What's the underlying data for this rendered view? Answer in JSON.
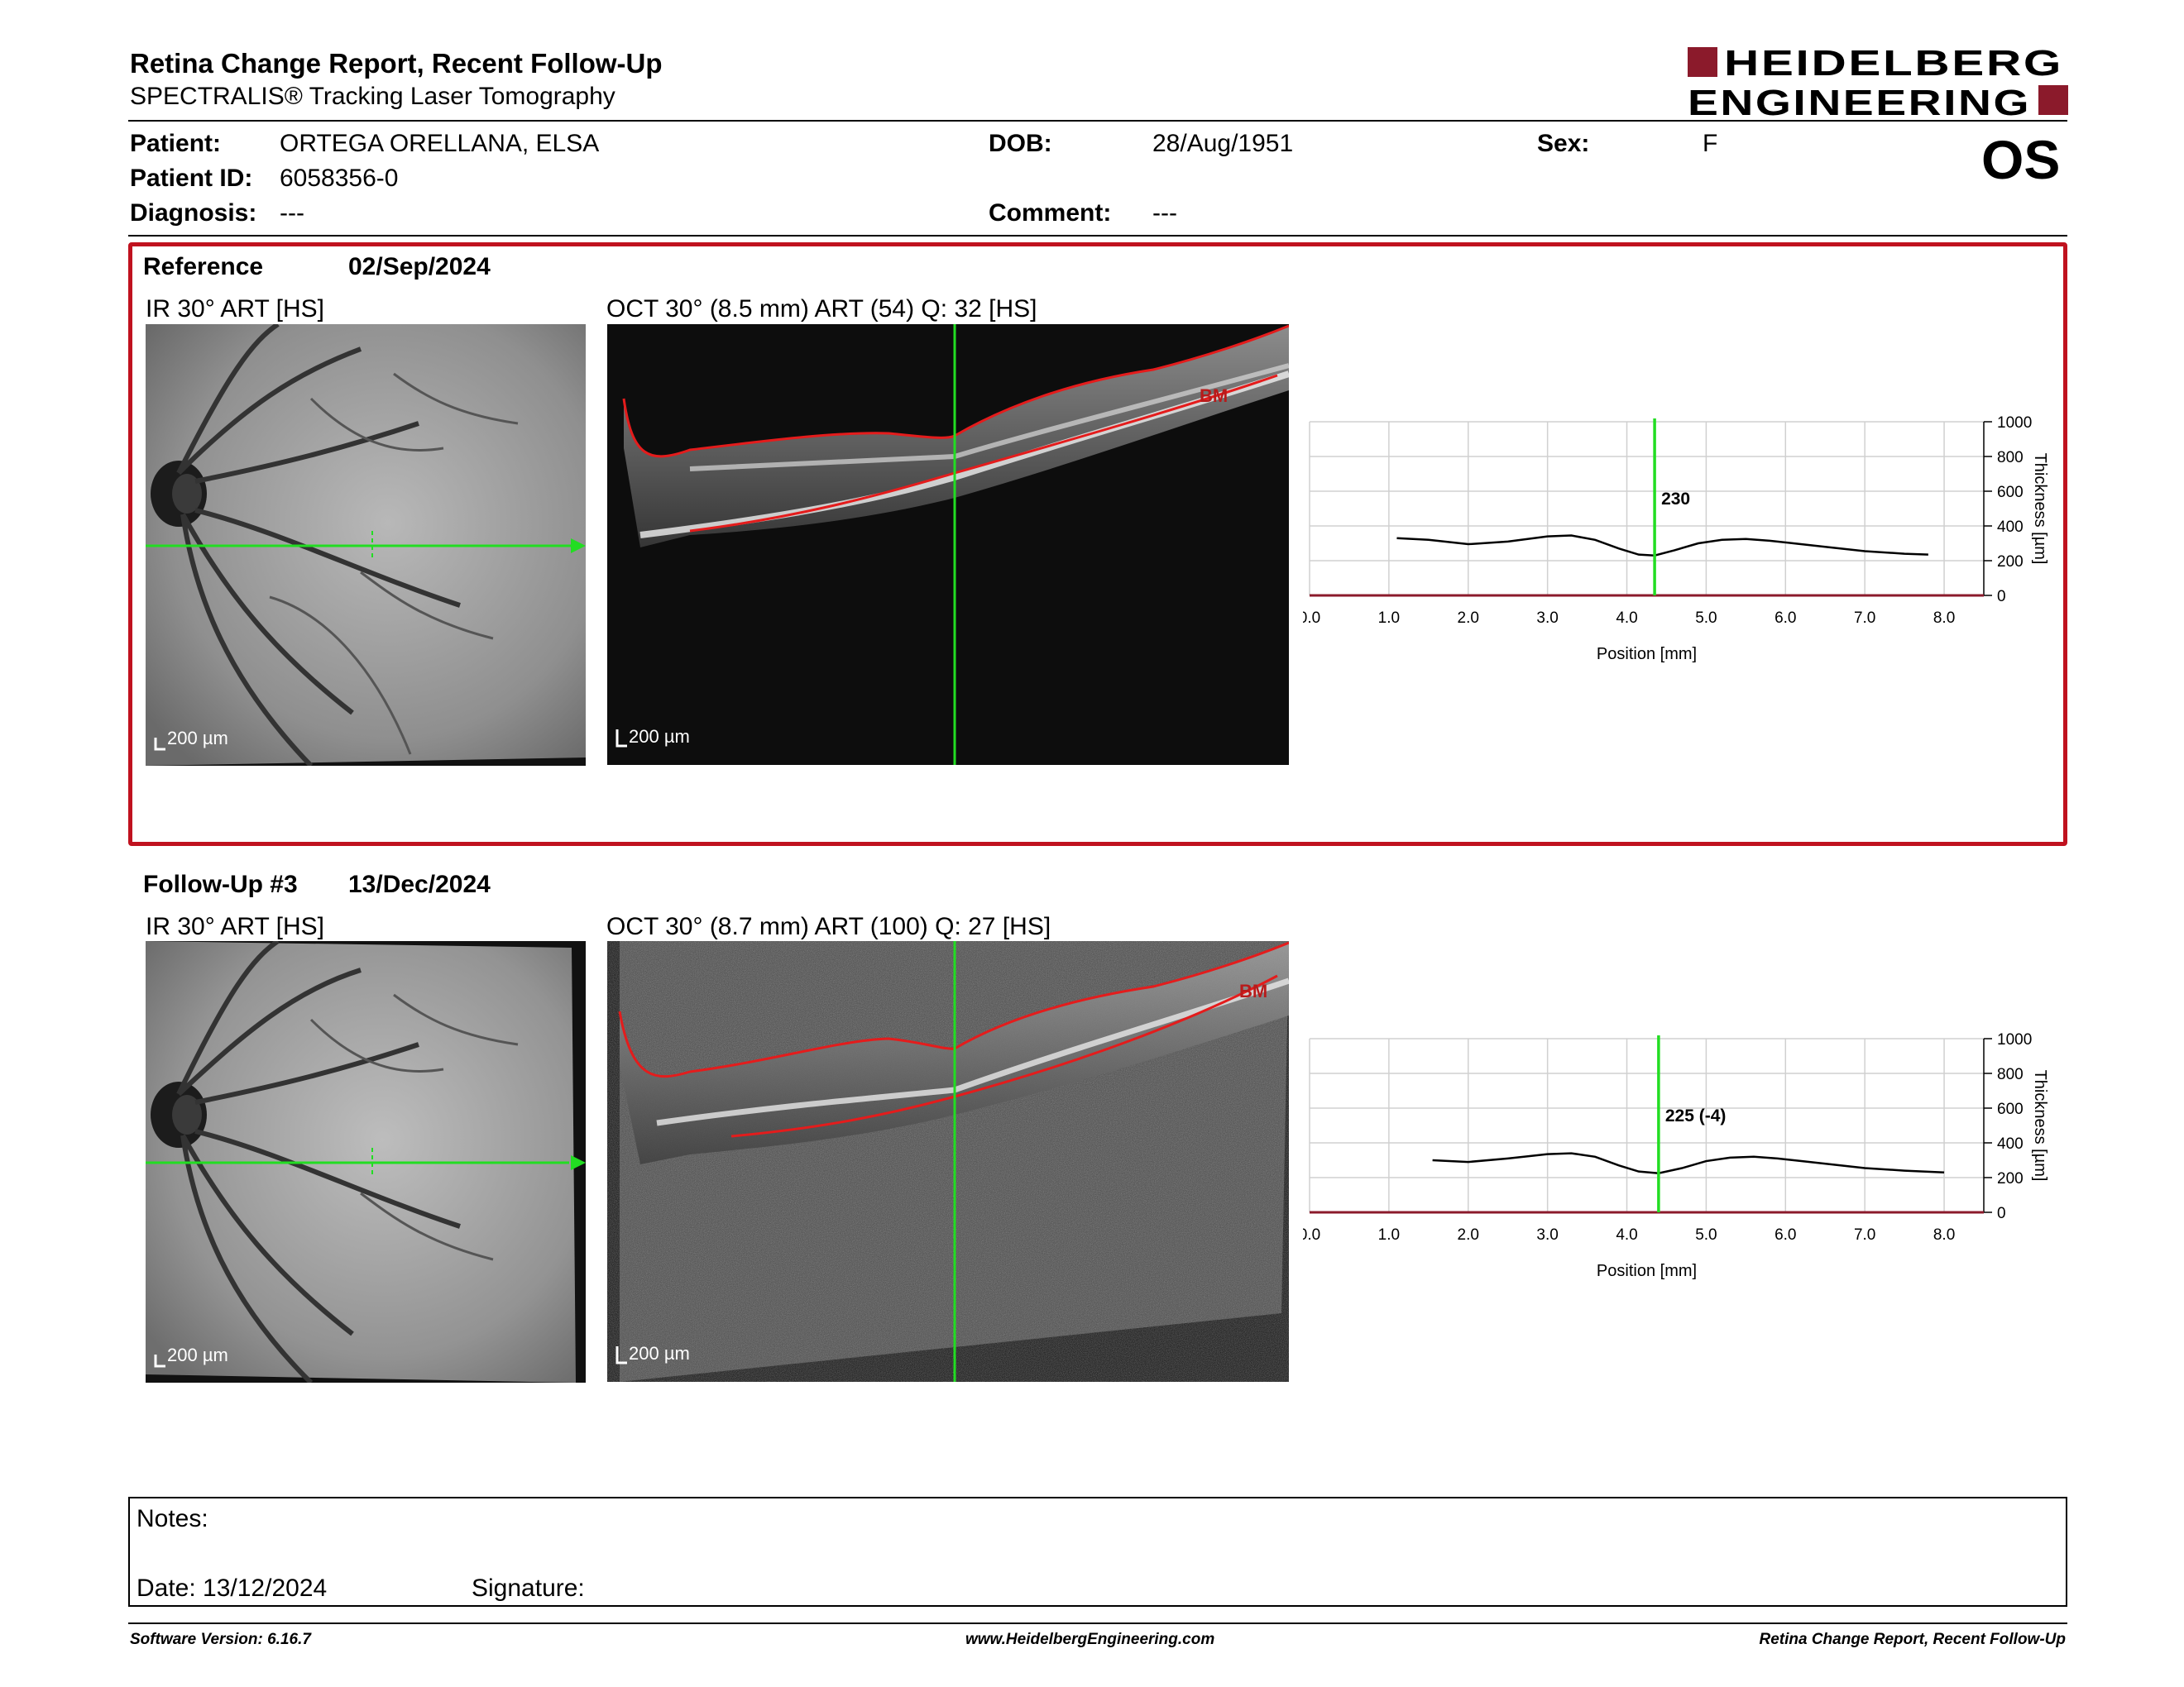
{
  "header": {
    "title": "Retina Change Report, Recent Follow-Up",
    "subtitle": "SPECTRALIS® Tracking Laser Tomography",
    "logo_line1": "HEIDELBERG",
    "logo_line2": "ENGINEERING",
    "eye": "OS"
  },
  "patient": {
    "patient_label": "Patient:",
    "patient_value": "ORTEGA ORELLANA, ELSA",
    "id_label": "Patient ID:",
    "id_value": "6058356-0",
    "diagnosis_label": "Diagnosis:",
    "diagnosis_value": "---",
    "dob_label": "DOB:",
    "dob_value": "28/Aug/1951",
    "comment_label": "Comment:",
    "comment_value": "---",
    "sex_label": "Sex:",
    "sex_value": "F"
  },
  "reference": {
    "label": "Reference",
    "date": "02/Sep/2024",
    "ir_title": "IR 30° ART [HS]",
    "oct_title": "OCT 30° (8.5 mm) ART (54) Q: 32 [HS]",
    "scale_ir": "200 µm",
    "scale_oct": "200 µm",
    "bm_label": "BM"
  },
  "followup": {
    "label": "Follow-Up #3",
    "date": "13/Dec/2024",
    "ir_title": "IR 30° ART [HS]",
    "oct_title": "OCT 30° (8.7 mm) ART (100) Q: 27 [HS]",
    "scale_ir": "200 µm",
    "scale_oct": "200 µm",
    "bm_label": "BM"
  },
  "chart_data": [
    {
      "type": "line",
      "xlabel": "Position [mm]",
      "ylabel": "Thickness [µm]",
      "xlim": [
        0,
        8.5
      ],
      "ylim": [
        0,
        1000
      ],
      "x_ticks": [
        "0.0",
        "1.0",
        "2.0",
        "3.0",
        "4.0",
        "5.0",
        "6.0",
        "7.0",
        "8.0"
      ],
      "y_ticks": [
        "0",
        "200",
        "400",
        "600",
        "800",
        "1000"
      ],
      "grid": true,
      "cursor_x": 4.35,
      "cursor_label": "230",
      "x": [
        1.1,
        1.5,
        2.0,
        2.5,
        3.0,
        3.3,
        3.6,
        3.9,
        4.15,
        4.35,
        4.6,
        4.9,
        5.2,
        5.5,
        5.8,
        6.1,
        6.5,
        7.0,
        7.5,
        7.8
      ],
      "y": [
        330,
        320,
        295,
        310,
        340,
        345,
        320,
        270,
        235,
        230,
        260,
        300,
        320,
        325,
        315,
        300,
        280,
        255,
        240,
        235
      ]
    },
    {
      "type": "line",
      "xlabel": "Position [mm]",
      "ylabel": "Thickness [µm]",
      "xlim": [
        0,
        8.5
      ],
      "ylim": [
        0,
        1000
      ],
      "x_ticks": [
        "0.0",
        "1.0",
        "2.0",
        "3.0",
        "4.0",
        "5.0",
        "6.0",
        "7.0",
        "8.0"
      ],
      "y_ticks": [
        "0",
        "200",
        "400",
        "600",
        "800",
        "1000"
      ],
      "grid": true,
      "cursor_x": 4.4,
      "cursor_label": "225 (-4)",
      "x": [
        1.55,
        2.0,
        2.5,
        3.0,
        3.3,
        3.6,
        3.9,
        4.15,
        4.4,
        4.7,
        5.0,
        5.3,
        5.6,
        5.9,
        6.2,
        6.6,
        7.0,
        7.5,
        8.0
      ],
      "y": [
        300,
        290,
        310,
        335,
        340,
        320,
        270,
        235,
        225,
        255,
        295,
        315,
        320,
        310,
        295,
        275,
        255,
        240,
        230
      ]
    }
  ],
  "notes": {
    "notes_label": "Notes:",
    "date_label": "Date: 13/12/2024",
    "signature_label": "Signature:"
  },
  "footer": {
    "software": "Software Version: 6.16.7",
    "website": "www.HeidelbergEngineering.com",
    "report": "Retina Change Report, Recent Follow-Up"
  }
}
